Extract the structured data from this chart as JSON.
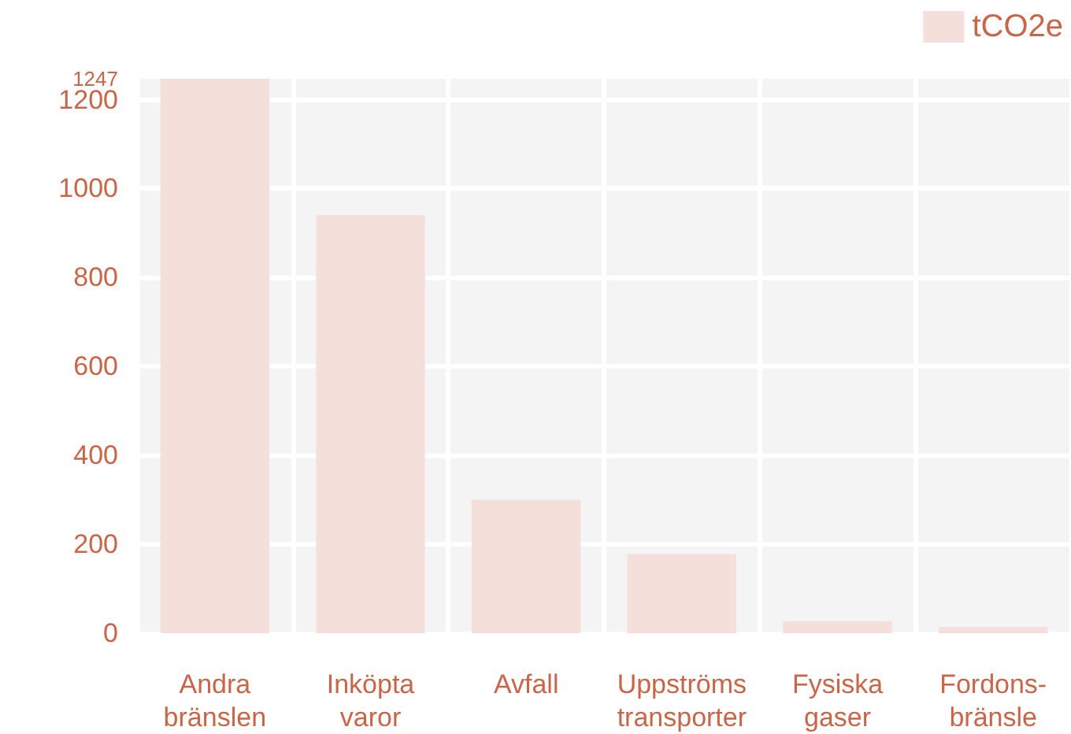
{
  "chart_data": {
    "type": "bar",
    "categories": [
      "Andra bränslen",
      "Inköpta varor",
      "Avfall",
      "Uppströms transporter",
      "Fysiska gaser",
      "Fordons-bränsle"
    ],
    "series": [
      {
        "name": "tCO2e",
        "color": "#f4dfdb",
        "values": [
          1247,
          940,
          300,
          178,
          27,
          14
        ]
      }
    ],
    "ylim": [
      0,
      1247
    ],
    "yticks": [
      0,
      200,
      400,
      600,
      800,
      1000,
      1200,
      1247
    ],
    "grid": true,
    "legend": "top right"
  }
}
